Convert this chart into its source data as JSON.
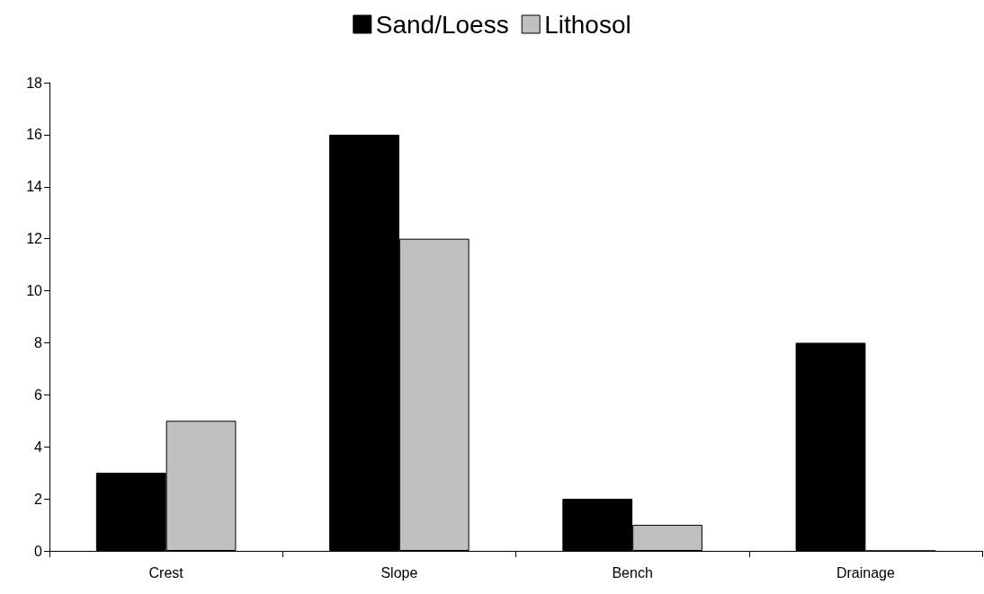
{
  "chart_data": {
    "type": "bar",
    "categories": [
      "Crest",
      "Slope",
      "Bench",
      "Drainage"
    ],
    "series": [
      {
        "name": "Sand/Loess",
        "color": "#000000",
        "values": [
          3,
          16,
          2,
          8
        ]
      },
      {
        "name": "Lithosol",
        "color": "#c0c0c0",
        "values": [
          5,
          12,
          1,
          0
        ]
      }
    ],
    "ylim": [
      0,
      18
    ],
    "yticks": [
      0,
      2,
      4,
      6,
      8,
      10,
      12,
      14,
      16,
      18
    ],
    "grid": false,
    "legend": "top"
  }
}
